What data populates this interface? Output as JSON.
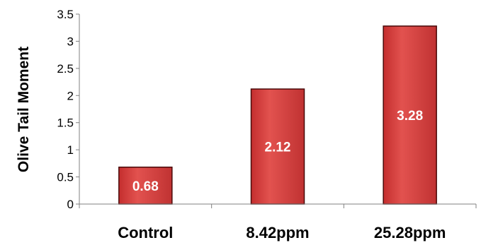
{
  "colors": {
    "bar_fill": "#d23c3c",
    "bar_highlight": "#e25a58",
    "bar_stroke": "#4a0a0a",
    "axis": "#808080",
    "label_text": "#ffffff"
  },
  "chart_data": {
    "type": "bar",
    "categories": [
      "Control",
      "8.42ppm",
      "25.28ppm"
    ],
    "values": [
      0.68,
      2.12,
      3.28
    ],
    "data_labels": [
      "0.68",
      "2.12",
      "3.28"
    ],
    "title": "",
    "xlabel": "",
    "ylabel": "Olive Tail Moment",
    "ylim": [
      0,
      3.5
    ],
    "yticks": [
      "0",
      "0.5",
      "1",
      "1.5",
      "2",
      "2.5",
      "3",
      "3.5"
    ],
    "grid": false,
    "legend": "none"
  }
}
